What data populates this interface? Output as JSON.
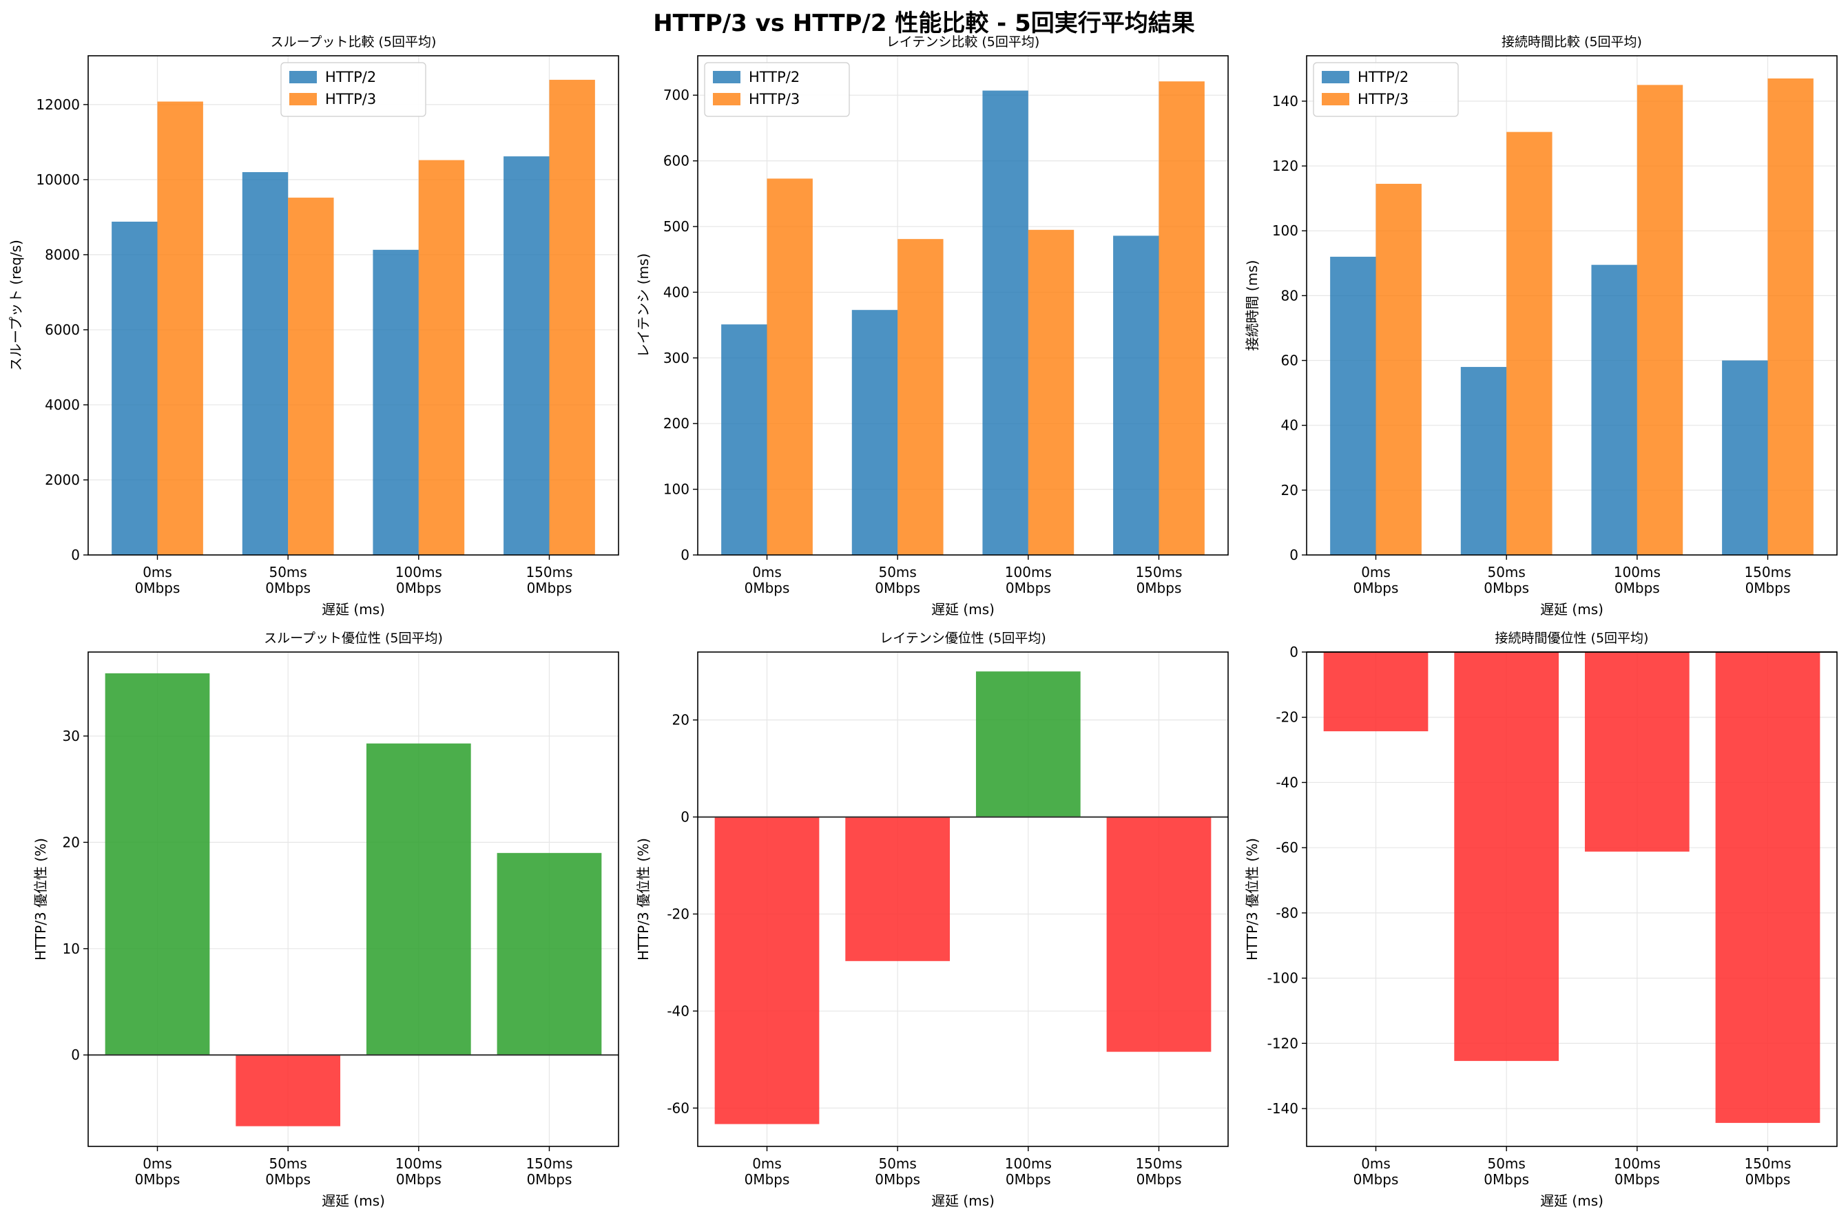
{
  "title": "HTTP/3 vs HTTP/2 性能比較 - 5回実行平均結果",
  "colors": {
    "http2": "#1f77b4",
    "http3": "#ff7f0e",
    "positive": "#2ca02c",
    "negative": "#ff2a2a"
  },
  "chart_data": [
    {
      "type": "bar",
      "title": "スループット比較 (5回平均)",
      "xlabel": "遅延 (ms)",
      "ylabel": "スループット (req/s)",
      "categories": [
        "0ms\n0Mbps",
        "50ms\n0Mbps",
        "100ms\n0Mbps",
        "150ms\n0Mbps"
      ],
      "series": [
        {
          "name": "HTTP/2",
          "values": [
            8880,
            10200,
            8130,
            10620
          ]
        },
        {
          "name": "HTTP/3",
          "values": [
            12080,
            9520,
            10520,
            12660
          ]
        }
      ],
      "ylim": [
        0,
        13300
      ],
      "yticks": [
        0,
        2000,
        4000,
        6000,
        8000,
        10000,
        12000
      ],
      "legend": "top-center",
      "grid": true
    },
    {
      "type": "bar",
      "title": "レイテンシ比較 (5回平均)",
      "xlabel": "遅延 (ms)",
      "ylabel": "レイテンシ (ms)",
      "categories": [
        "0ms\n0Mbps",
        "50ms\n0Mbps",
        "100ms\n0Mbps",
        "150ms\n0Mbps"
      ],
      "series": [
        {
          "name": "HTTP/2",
          "values": [
            351,
            373,
            707,
            486
          ]
        },
        {
          "name": "HTTP/3",
          "values": [
            573,
            481,
            495,
            721
          ]
        }
      ],
      "ylim": [
        0,
        760
      ],
      "yticks": [
        0,
        100,
        200,
        300,
        400,
        500,
        600,
        700
      ],
      "legend": "top-left",
      "grid": true
    },
    {
      "type": "bar",
      "title": "接続時間比較 (5回平均)",
      "xlabel": "遅延 (ms)",
      "ylabel": "接続時間 (ms)",
      "categories": [
        "0ms\n0Mbps",
        "50ms\n0Mbps",
        "100ms\n0Mbps",
        "150ms\n0Mbps"
      ],
      "series": [
        {
          "name": "HTTP/2",
          "values": [
            92,
            58,
            89.5,
            60
          ]
        },
        {
          "name": "HTTP/3",
          "values": [
            114.5,
            130.5,
            145,
            147
          ]
        }
      ],
      "ylim": [
        0,
        154
      ],
      "yticks": [
        0,
        20,
        40,
        60,
        80,
        100,
        120,
        140
      ],
      "legend": "top-left",
      "grid": true
    },
    {
      "type": "bar",
      "title": "スループット優位性 (5回平均)",
      "xlabel": "遅延 (ms)",
      "ylabel": "HTTP/3 優位性 (%)",
      "categories": [
        "0ms\n0Mbps",
        "50ms\n0Mbps",
        "100ms\n0Mbps",
        "150ms\n0Mbps"
      ],
      "values": [
        35.9,
        -6.7,
        29.3,
        19.0
      ],
      "ylim": [
        -8.6,
        37.9
      ],
      "yticks": [
        0,
        10,
        20,
        30
      ],
      "grid": true
    },
    {
      "type": "bar",
      "title": "レイテンシ優位性 (5回平均)",
      "xlabel": "遅延 (ms)",
      "ylabel": "HTTP/3 優位性 (%)",
      "categories": [
        "0ms\n0Mbps",
        "50ms\n0Mbps",
        "100ms\n0Mbps",
        "150ms\n0Mbps"
      ],
      "values": [
        -63.3,
        -29.7,
        30.0,
        -48.4
      ],
      "ylim": [
        -67.9,
        34.0
      ],
      "yticks": [
        -60,
        -40,
        -20,
        0,
        20
      ],
      "grid": true
    },
    {
      "type": "bar",
      "title": "接続時間優位性 (5回平均)",
      "xlabel": "遅延 (ms)",
      "ylabel": "HTTP/3 優位性 (%)",
      "categories": [
        "0ms\n0Mbps",
        "50ms\n0Mbps",
        "100ms\n0Mbps",
        "150ms\n0Mbps"
      ],
      "values": [
        -24.3,
        -125.4,
        -61.2,
        -144.4
      ],
      "ylim": [
        -151.6,
        0
      ],
      "yticks": [
        -140,
        -120,
        -100,
        -80,
        -60,
        -40,
        -20,
        0
      ],
      "grid": true
    }
  ]
}
